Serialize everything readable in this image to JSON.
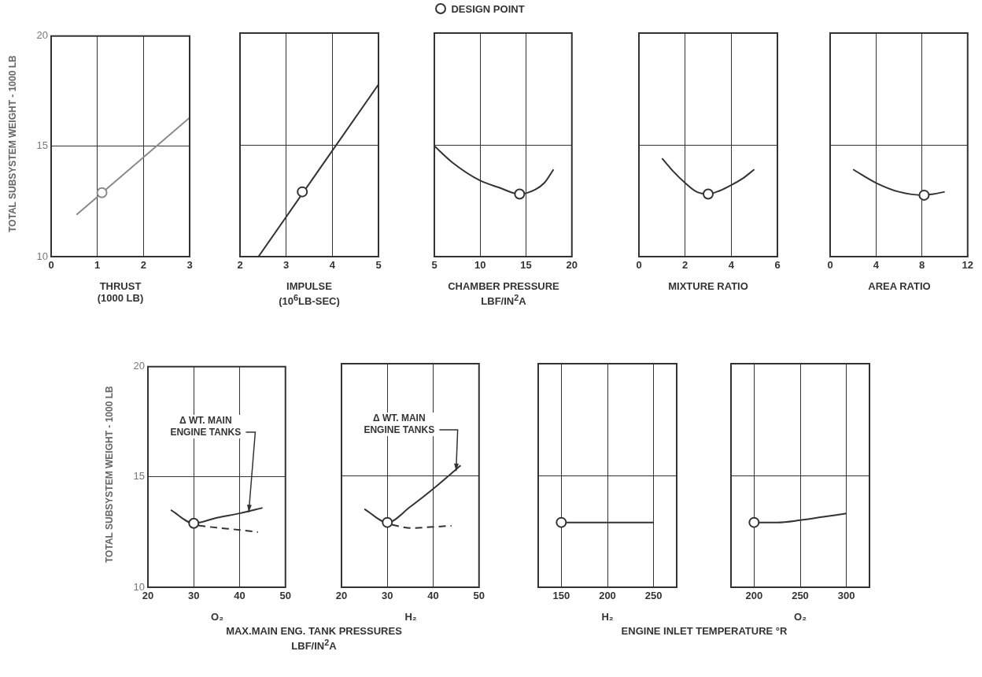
{
  "chart_data": [
    {
      "type": "line",
      "xlabel": "THRUST\n(1000 LB)",
      "ylabel": "TOTAL SUBSYSTEM WEIGHT - 1000 LB",
      "xlim": [
        0,
        3
      ],
      "xticks": [
        0,
        1,
        2,
        3
      ],
      "ylim": [
        10,
        20
      ],
      "yticks": [
        10,
        15,
        20
      ],
      "grid": true,
      "series": [
        {
          "type": "line",
          "color": "#8a8a8a",
          "x": [
            0.55,
            3
          ],
          "values": [
            11.9,
            16.3
          ]
        },
        {
          "type": "scatter",
          "color": "#8a8a8a",
          "marker": "circle",
          "x": [
            1.1
          ],
          "values": [
            12.9
          ]
        }
      ]
    },
    {
      "type": "line",
      "xlabel": "IMPULSE\n(10$^{6}$LB-SEC)",
      "xlim": [
        2,
        5
      ],
      "xticks": [
        2,
        3,
        4,
        5
      ],
      "ylim": [
        10,
        20
      ],
      "yticks": [
        10,
        15,
        20
      ],
      "grid": true,
      "tick_labels": "x",
      "series": [
        {
          "type": "line",
          "color": "#333333",
          "x": [
            2.4,
            5
          ],
          "values": [
            10,
            17.7
          ]
        },
        {
          "type": "scatter",
          "color": "#333333",
          "marker": "circle",
          "x": [
            3.35
          ],
          "values": [
            12.9
          ]
        }
      ]
    },
    {
      "type": "line",
      "xlabel": "CHAMBER PRESSURE\nLBF/IN$^{2}$A",
      "xlim": [
        5,
        20
      ],
      "xticks": [
        5,
        10,
        15,
        20
      ],
      "ylim": [
        10,
        20
      ],
      "yticks": [
        10,
        15,
        20
      ],
      "grid": true,
      "tick_labels": "x",
      "legend": "top",
      "series": [
        {
          "type": "line",
          "color": "#333333",
          "x": [
            5,
            7,
            10,
            12,
            14.3,
            16,
            17,
            18
          ],
          "values": [
            14.95,
            14.2,
            13.4,
            13.1,
            12.8,
            13.0,
            13.3,
            13.9
          ]
        },
        {
          "type": "scatter",
          "name": "DESIGN POINT",
          "color": "#333333",
          "marker": "circle",
          "x": [
            14.3
          ],
          "values": [
            12.8
          ]
        }
      ]
    },
    {
      "type": "line",
      "xlabel": "MIXTURE RATIO",
      "xlim": [
        0,
        6
      ],
      "xticks": [
        0,
        2,
        4,
        6
      ],
      "ylim": [
        10,
        20
      ],
      "yticks": [
        10,
        15,
        20
      ],
      "grid": true,
      "tick_labels": "x",
      "series": [
        {
          "type": "line",
          "color": "#333333",
          "x": [
            1,
            1.5,
            2,
            2.5,
            3,
            3.5,
            4,
            4.5,
            5
          ],
          "values": [
            14.4,
            13.8,
            13.3,
            12.9,
            12.8,
            12.95,
            13.2,
            13.5,
            13.9
          ]
        },
        {
          "type": "scatter",
          "color": "#333333",
          "marker": "circle",
          "x": [
            3
          ],
          "values": [
            12.8
          ]
        }
      ]
    },
    {
      "type": "line",
      "xlabel": "AREA RATIO",
      "xlim": [
        0,
        12
      ],
      "xticks": [
        0,
        4,
        8,
        12
      ],
      "ylim": [
        10,
        20
      ],
      "yticks": [
        10,
        15,
        20
      ],
      "grid": true,
      "tick_labels": "x",
      "series": [
        {
          "type": "line",
          "color": "#333333",
          "x": [
            2,
            4,
            6,
            8.2,
            9,
            10
          ],
          "values": [
            13.9,
            13.3,
            12.9,
            12.75,
            12.8,
            12.9
          ]
        },
        {
          "type": "scatter",
          "color": "#333333",
          "marker": "circle",
          "x": [
            8.2
          ],
          "values": [
            12.75
          ]
        }
      ]
    },
    {
      "type": "line",
      "xlabel": "O₂",
      "ylabel": "TOTAL SUBSYSTEM WEIGHT - 1000 LB",
      "xlim": [
        20,
        50
      ],
      "xticks": [
        20,
        30,
        40,
        50
      ],
      "ylim": [
        10,
        20
      ],
      "yticks": [
        10,
        15,
        20
      ],
      "grid": true,
      "annotations": [
        {
          "text": "Δ WT. MAIN ENGINE TANKS",
          "x": 42,
          "y": 13.4
        },
        "MAX.MAIN ENG. TANK PRESSURES\nLBF/IN$^{2}$A"
      ],
      "series": [
        {
          "type": "line",
          "color": "#333333",
          "x": [
            25,
            30,
            35,
            40,
            45
          ],
          "values": [
            13.5,
            12.9,
            13.15,
            13.35,
            13.6
          ]
        },
        {
          "type": "line",
          "color": "#333333",
          "line_style": "dashed",
          "x": [
            31,
            35,
            40,
            44
          ],
          "values": [
            12.8,
            12.7,
            12.6,
            12.5
          ]
        },
        {
          "type": "scatter",
          "color": "#333333",
          "marker": "circle",
          "x": [
            30
          ],
          "values": [
            12.9
          ]
        }
      ]
    },
    {
      "type": "line",
      "xlabel": "H₂",
      "xlim": [
        20,
        50
      ],
      "xticks": [
        20,
        30,
        40,
        50
      ],
      "ylim": [
        10,
        20
      ],
      "yticks": [
        10,
        15,
        20
      ],
      "grid": true,
      "tick_labels": "x",
      "annotations": [
        {
          "text": "Δ WT. MAIN ENGINE TANKS",
          "x": 45,
          "y": 15.2
        }
      ],
      "series": [
        {
          "type": "line",
          "color": "#333333",
          "x": [
            25,
            30,
            35,
            40,
            46
          ],
          "values": [
            13.5,
            12.9,
            13.6,
            14.4,
            15.45
          ]
        },
        {
          "type": "line",
          "color": "#333333",
          "line_style": "dashed",
          "x": [
            31,
            35,
            40,
            44
          ],
          "values": [
            12.8,
            12.65,
            12.7,
            12.75
          ]
        },
        {
          "type": "scatter",
          "color": "#333333",
          "marker": "circle",
          "x": [
            30
          ],
          "values": [
            12.9
          ]
        }
      ]
    },
    {
      "type": "line",
      "xlabel": "H₂",
      "xlim": [
        125,
        275
      ],
      "xticks": [
        150,
        200,
        250
      ],
      "ylim": [
        10,
        20
      ],
      "yticks": [
        10,
        15,
        20
      ],
      "grid": true,
      "tick_labels": "x",
      "annotations": [
        "ENGINE INLET TEMPERATURE °R"
      ],
      "series": [
        {
          "type": "line",
          "color": "#333333",
          "x": [
            150,
            200,
            250
          ],
          "values": [
            12.9,
            12.9,
            12.9
          ]
        },
        {
          "type": "scatter",
          "color": "#333333",
          "marker": "circle",
          "x": [
            150
          ],
          "values": [
            12.9
          ]
        }
      ]
    },
    {
      "type": "line",
      "xlabel": "O₂",
      "xlim": [
        175,
        325
      ],
      "xticks": [
        200,
        250,
        300
      ],
      "ylim": [
        10,
        20
      ],
      "yticks": [
        10,
        15,
        20
      ],
      "grid": true,
      "tick_labels": "x",
      "series": [
        {
          "type": "line",
          "color": "#333333",
          "x": [
            200,
            225,
            250,
            275,
            300
          ],
          "values": [
            12.9,
            12.9,
            13.0,
            13.15,
            13.3
          ]
        },
        {
          "type": "scatter",
          "color": "#333333",
          "marker": "circle",
          "x": [
            200
          ],
          "values": [
            12.9
          ]
        }
      ]
    }
  ]
}
